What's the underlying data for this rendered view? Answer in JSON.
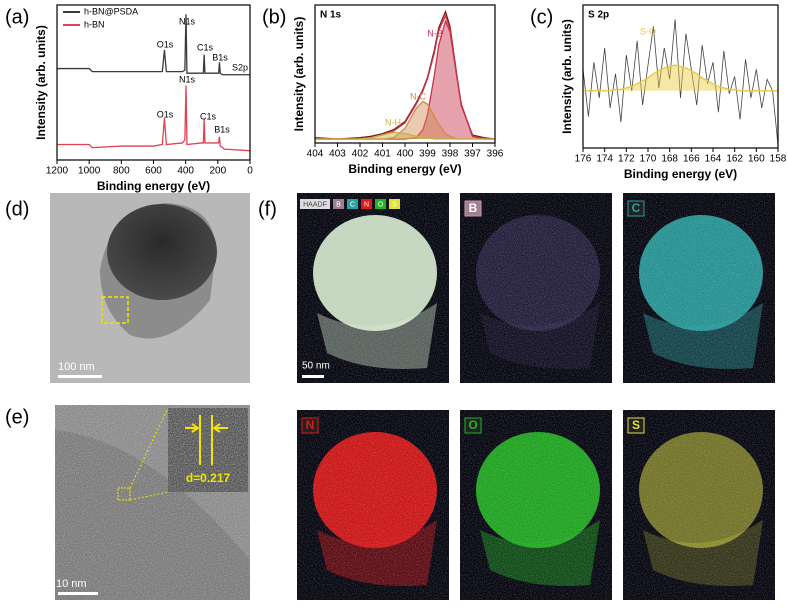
{
  "chart_data": [
    {
      "type": "line",
      "label": "(a)",
      "xlabel": "Binding energy (eV)",
      "ylabel": "Intensity (arb. units)",
      "x": [
        1200,
        1000,
        980,
        800,
        600,
        545,
        532,
        520,
        420,
        405,
        398,
        392,
        300,
        290,
        285,
        280,
        200,
        195,
        190,
        185,
        170,
        160,
        0
      ],
      "series": [
        {
          "name": "h-BN@PSDA",
          "color": "#3a3a3a",
          "values": [
            59,
            59,
            57,
            57,
            57,
            57,
            71,
            57,
            57,
            58,
            94,
            56,
            56,
            56,
            68,
            56,
            56,
            56,
            63,
            56,
            55,
            55,
            55
          ]
        },
        {
          "name": "h-BN",
          "color": "#e0424f",
          "values": [
            10,
            10,
            8,
            9,
            9,
            10,
            27,
            10,
            11,
            13,
            48,
            10,
            11,
            11,
            26,
            11,
            11,
            11,
            15,
            9,
            8,
            7,
            6
          ]
        }
      ],
      "annotations": [
        "O1s",
        "N1s",
        "C1s",
        "B1s",
        "S2p",
        "N1s",
        "O1s",
        "C1s",
        "B1s"
      ],
      "xlim": [
        1200,
        0
      ],
      "xticks": [
        1200,
        1000,
        800,
        600,
        400,
        200,
        0
      ],
      "ylim": [
        0,
        100
      ]
    },
    {
      "type": "line",
      "label": "(b)",
      "title": "N 1s",
      "xlabel": "Binding energy (eV)",
      "ylabel": "Intensity (arb. units)",
      "x": [
        404,
        403,
        402,
        401.5,
        401,
        400.5,
        400,
        399.5,
        399.2,
        399,
        398.7,
        398.5,
        398.2,
        398,
        397.7,
        397.5,
        397,
        396.5,
        396
      ],
      "series": [
        {
          "color": "#7a1a1a",
          "values": [
            1,
            0,
            1,
            2,
            4,
            7,
            13,
            27,
            37,
            46,
            66,
            83,
            95,
            84,
            48,
            25,
            3,
            1,
            0
          ]
        },
        {
          "color": "#c8324a",
          "values": [
            0,
            0,
            0,
            1,
            3,
            6,
            12,
            26,
            36,
            45,
            64,
            81,
            92,
            82,
            47,
            26,
            2,
            0,
            0
          ]
        },
        {
          "name": "N-B",
          "color": "#c8324a",
          "area": true,
          "values": [
            0,
            0,
            0,
            0,
            0,
            0,
            0,
            1,
            7,
            18,
            47,
            70,
            88,
            80,
            47,
            26,
            2,
            0,
            0
          ]
        },
        {
          "name": "N-C",
          "color": "#d08a50",
          "area": true,
          "values": [
            0,
            0,
            0,
            0,
            0,
            1,
            8,
            23,
            28,
            26,
            17,
            11,
            4,
            2,
            0,
            0,
            0,
            0,
            0
          ]
        },
        {
          "name": "N-H",
          "color": "#c9b040",
          "area": true,
          "values": [
            0,
            0,
            0,
            1,
            3,
            5,
            4,
            2,
            1,
            1,
            0,
            0,
            0,
            0,
            0,
            0,
            0,
            0,
            0
          ]
        }
      ],
      "xlim": [
        404,
        396
      ],
      "xticks": [
        404,
        403,
        402,
        401,
        400,
        399,
        398,
        397,
        396
      ],
      "ylim": [
        -3,
        100
      ]
    },
    {
      "type": "line",
      "label": "(c)",
      "title": "S 2p",
      "xlabel": "Binding energy (eV)",
      "ylabel": "Intensity (arb. units)",
      "x": [
        176,
        175.5,
        175,
        174.5,
        174,
        173.5,
        173,
        172.5,
        172,
        171.5,
        171,
        170.5,
        170,
        169.5,
        169,
        168.5,
        168,
        167.5,
        167,
        166.5,
        166,
        165.5,
        165,
        164.5,
        164,
        163.5,
        163,
        162.5,
        162,
        161.5,
        161,
        160.5,
        160,
        159.5,
        159,
        158.5,
        158
      ],
      "series": [
        {
          "color": "#444444",
          "values": [
            55,
            22,
            60,
            35,
            70,
            28,
            52,
            18,
            65,
            40,
            75,
            30,
            58,
            85,
            42,
            70,
            48,
            90,
            35,
            80,
            55,
            30,
            72,
            45,
            60,
            25,
            68,
            38,
            50,
            20,
            62,
            35,
            55,
            28,
            48,
            40,
            2
          ]
        },
        {
          "name": "S-O",
          "color": "#e8c93a",
          "area": true,
          "values": [
            40,
            40,
            40,
            40,
            40,
            40,
            41,
            41,
            42,
            43,
            45,
            47,
            49,
            52,
            54,
            56,
            57,
            58,
            57,
            56,
            54,
            52,
            49,
            47,
            45,
            43,
            42,
            41,
            41,
            40,
            40,
            40,
            40,
            40,
            40,
            40,
            40
          ]
        }
      ],
      "xlim": [
        176,
        158
      ],
      "xticks": [
        176,
        174,
        172,
        170,
        168,
        166,
        164,
        162,
        160,
        158
      ],
      "ylim": [
        0,
        100
      ]
    }
  ],
  "figure": {
    "d": {
      "label": "(d)",
      "scale_bar": "100 nm"
    },
    "e": {
      "label": "(e)",
      "scale_bar": "10 nm",
      "spacing": "d=0.217"
    },
    "f": {
      "label": "(f)",
      "scale_bar": "50 nm",
      "maps": [
        "HAADF",
        "B",
        "C",
        "N",
        "O",
        "S"
      ]
    }
  }
}
